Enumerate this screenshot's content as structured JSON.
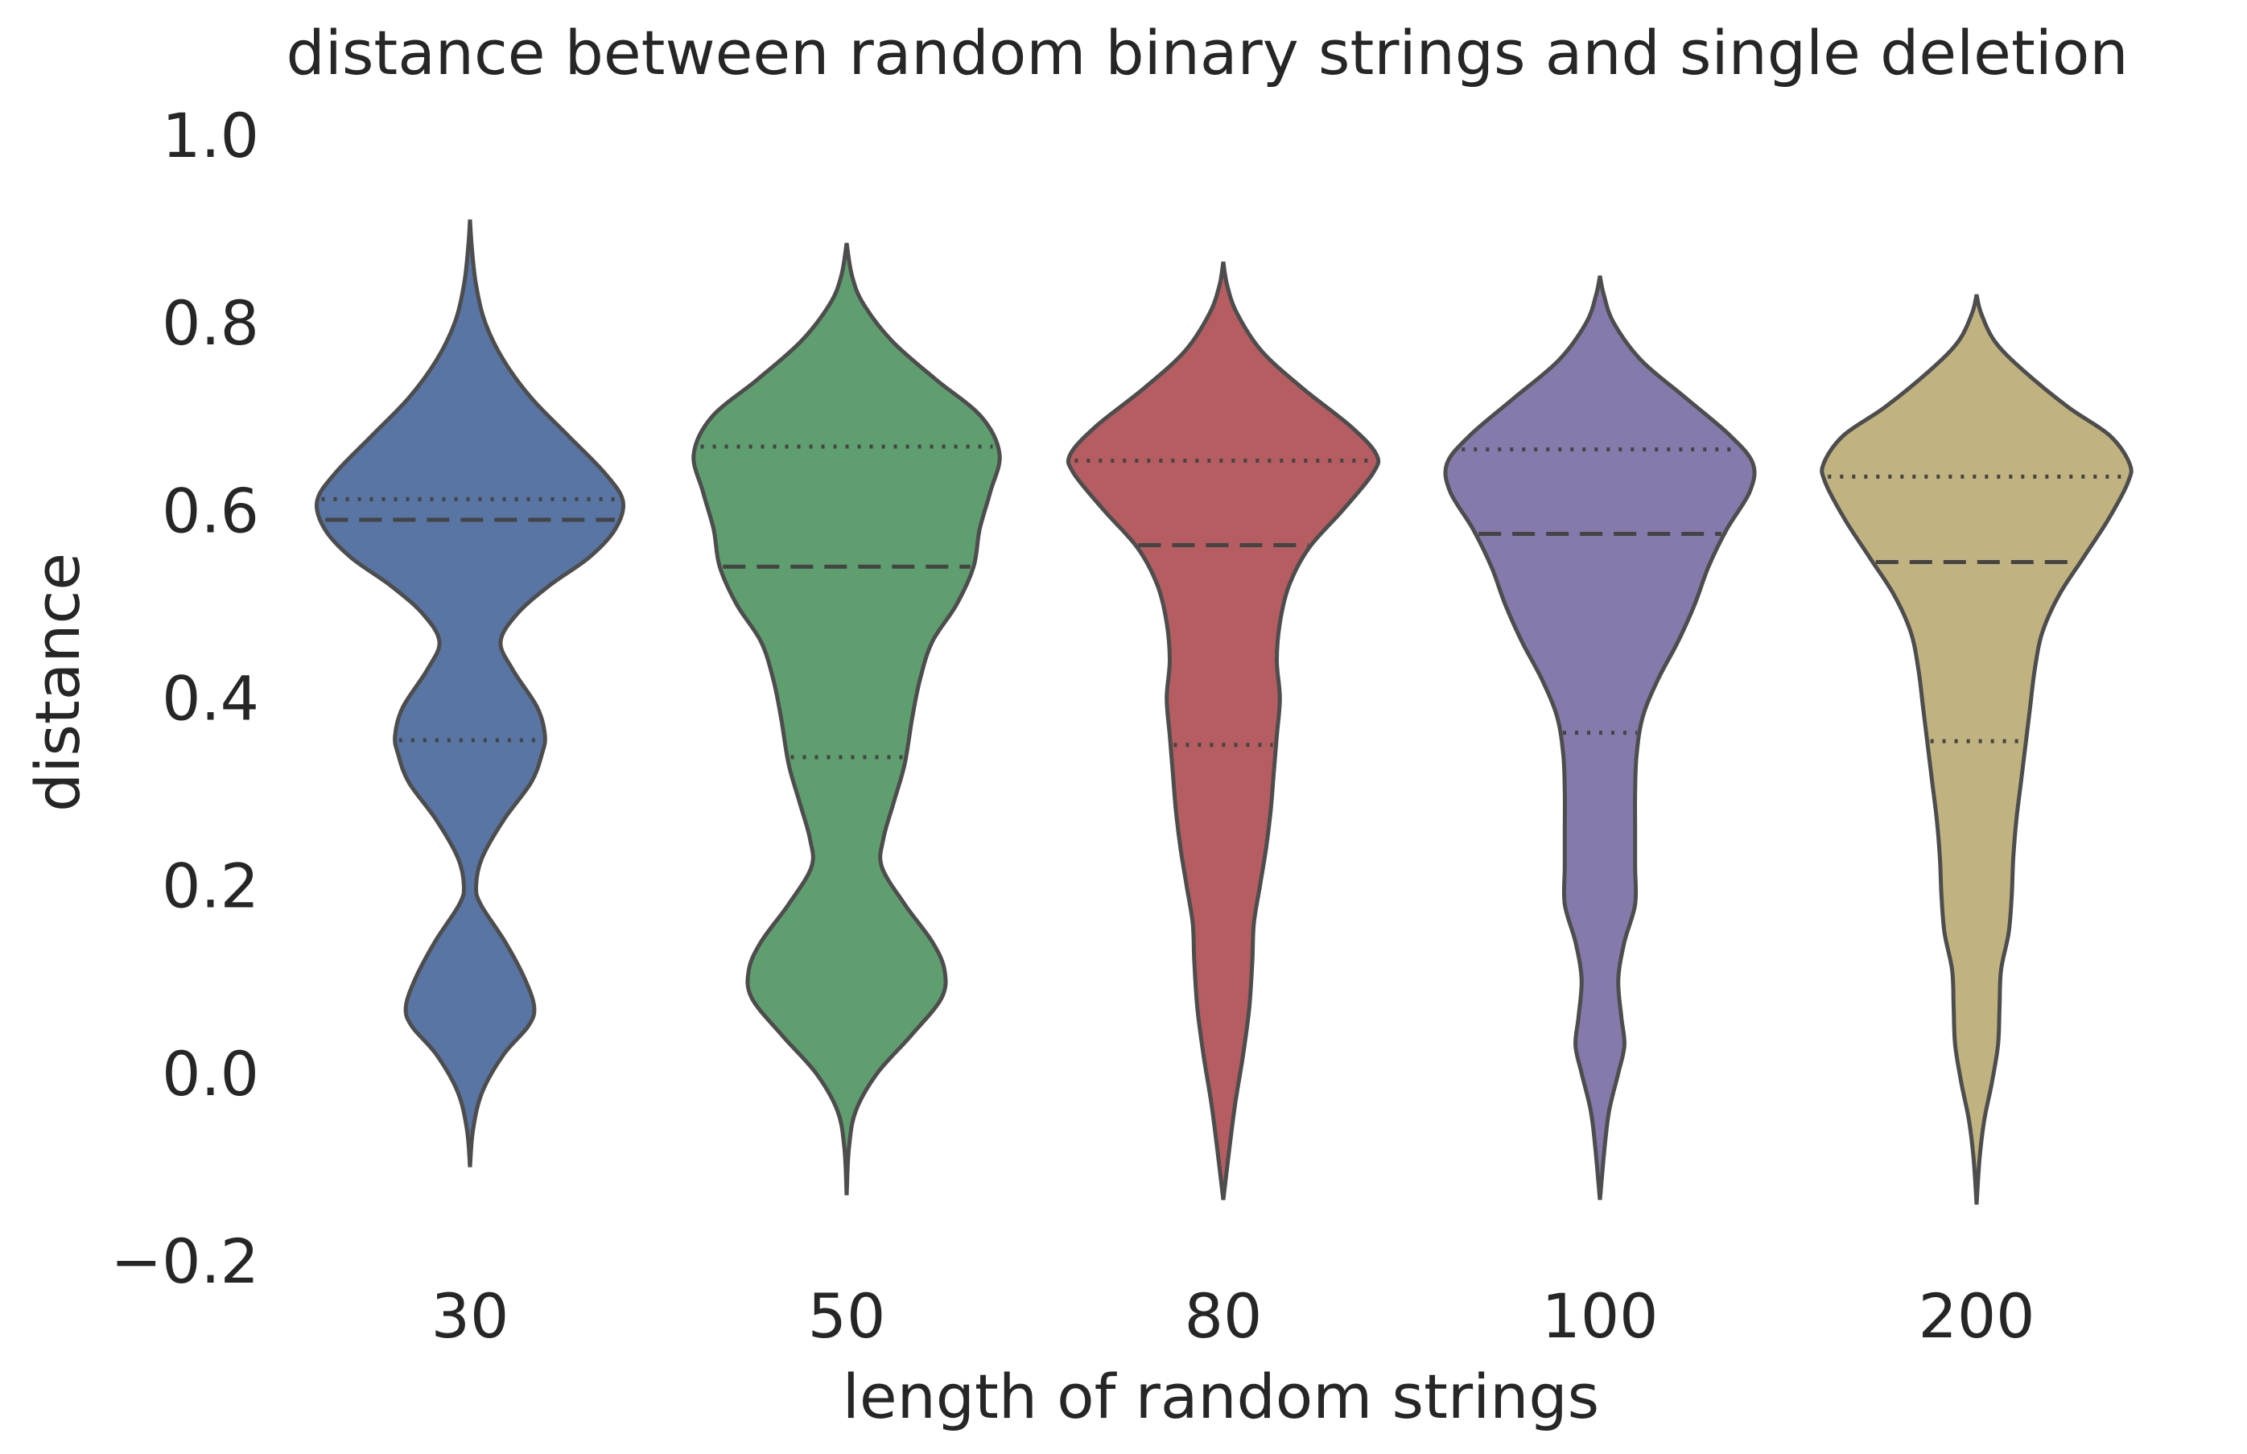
{
  "chart_data": {
    "type": "violin",
    "title": "distance between random binary strings and single deletion",
    "xlabel": "length of random strings",
    "ylabel": "distance",
    "ylim": [
      -0.2,
      1.0
    ],
    "yticks": [
      "−0.2",
      "0.0",
      "0.2",
      "0.4",
      "0.6",
      "0.8",
      "1.0"
    ],
    "grid": false,
    "categories": [
      "30",
      "50",
      "80",
      "100",
      "200"
    ],
    "violins": [
      {
        "category": "30",
        "color": "#5875a4",
        "min": -0.1,
        "max": 0.91,
        "q1": 0.355,
        "median": 0.59,
        "q3": 0.612,
        "density": [
          [
            -0.1,
            0.0
          ],
          [
            -0.06,
            0.02
          ],
          [
            -0.02,
            0.08
          ],
          [
            0.02,
            0.22
          ],
          [
            0.05,
            0.38
          ],
          [
            0.07,
            0.42
          ],
          [
            0.1,
            0.36
          ],
          [
            0.14,
            0.23
          ],
          [
            0.18,
            0.07
          ],
          [
            0.2,
            0.04
          ],
          [
            0.23,
            0.08
          ],
          [
            0.27,
            0.22
          ],
          [
            0.31,
            0.4
          ],
          [
            0.34,
            0.47
          ],
          [
            0.36,
            0.49
          ],
          [
            0.39,
            0.44
          ],
          [
            0.43,
            0.28
          ],
          [
            0.46,
            0.2
          ],
          [
            0.49,
            0.31
          ],
          [
            0.52,
            0.52
          ],
          [
            0.55,
            0.78
          ],
          [
            0.58,
            0.95
          ],
          [
            0.61,
            1.0
          ],
          [
            0.64,
            0.88
          ],
          [
            0.68,
            0.64
          ],
          [
            0.72,
            0.4
          ],
          [
            0.76,
            0.22
          ],
          [
            0.8,
            0.1
          ],
          [
            0.84,
            0.04
          ],
          [
            0.88,
            0.012
          ],
          [
            0.91,
            0.0
          ]
        ]
      },
      {
        "category": "50",
        "color": "#5f9e6e",
        "min": -0.13,
        "max": 0.885,
        "q1": 0.337,
        "median": 0.54,
        "q3": 0.668,
        "density": [
          [
            -0.13,
            0.0
          ],
          [
            -0.08,
            0.015
          ],
          [
            -0.04,
            0.06
          ],
          [
            0.0,
            0.2
          ],
          [
            0.04,
            0.42
          ],
          [
            0.08,
            0.62
          ],
          [
            0.11,
            0.64
          ],
          [
            0.14,
            0.56
          ],
          [
            0.18,
            0.38
          ],
          [
            0.22,
            0.23
          ],
          [
            0.25,
            0.24
          ],
          [
            0.29,
            0.31
          ],
          [
            0.33,
            0.38
          ],
          [
            0.38,
            0.43
          ],
          [
            0.42,
            0.48
          ],
          [
            0.46,
            0.56
          ],
          [
            0.5,
            0.72
          ],
          [
            0.54,
            0.83
          ],
          [
            0.58,
            0.87
          ],
          [
            0.62,
            0.94
          ],
          [
            0.66,
            1.0
          ],
          [
            0.7,
            0.88
          ],
          [
            0.74,
            0.58
          ],
          [
            0.78,
            0.3
          ],
          [
            0.82,
            0.11
          ],
          [
            0.85,
            0.035
          ],
          [
            0.885,
            0.0
          ]
        ]
      },
      {
        "category": "80",
        "color": "#b55d60",
        "min": -0.135,
        "max": 0.865,
        "q1": 0.35,
        "median": 0.563,
        "q3": 0.653,
        "density": [
          [
            -0.135,
            0.0
          ],
          [
            -0.08,
            0.04
          ],
          [
            -0.03,
            0.08
          ],
          [
            0.02,
            0.13
          ],
          [
            0.07,
            0.17
          ],
          [
            0.12,
            0.19
          ],
          [
            0.16,
            0.2
          ],
          [
            0.2,
            0.24
          ],
          [
            0.24,
            0.28
          ],
          [
            0.28,
            0.31
          ],
          [
            0.32,
            0.33
          ],
          [
            0.36,
            0.35
          ],
          [
            0.4,
            0.37
          ],
          [
            0.44,
            0.35
          ],
          [
            0.48,
            0.37
          ],
          [
            0.52,
            0.43
          ],
          [
            0.56,
            0.56
          ],
          [
            0.6,
            0.78
          ],
          [
            0.64,
            0.98
          ],
          [
            0.66,
            1.0
          ],
          [
            0.69,
            0.83
          ],
          [
            0.73,
            0.52
          ],
          [
            0.77,
            0.25
          ],
          [
            0.81,
            0.09
          ],
          [
            0.84,
            0.025
          ],
          [
            0.865,
            0.0
          ]
        ]
      },
      {
        "category": "100",
        "color": "#857aab",
        "min": -0.135,
        "max": 0.85,
        "q1": 0.363,
        "median": 0.575,
        "q3": 0.665,
        "density": [
          [
            -0.135,
            0.0
          ],
          [
            -0.08,
            0.03
          ],
          [
            -0.04,
            0.06
          ],
          [
            0.0,
            0.12
          ],
          [
            0.03,
            0.16
          ],
          [
            0.06,
            0.14
          ],
          [
            0.1,
            0.12
          ],
          [
            0.14,
            0.16
          ],
          [
            0.18,
            0.23
          ],
          [
            0.22,
            0.23
          ],
          [
            0.26,
            0.23
          ],
          [
            0.3,
            0.23
          ],
          [
            0.34,
            0.24
          ],
          [
            0.38,
            0.28
          ],
          [
            0.42,
            0.38
          ],
          [
            0.46,
            0.51
          ],
          [
            0.5,
            0.62
          ],
          [
            0.54,
            0.71
          ],
          [
            0.58,
            0.83
          ],
          [
            0.62,
            0.98
          ],
          [
            0.65,
            1.0
          ],
          [
            0.68,
            0.85
          ],
          [
            0.72,
            0.56
          ],
          [
            0.76,
            0.27
          ],
          [
            0.8,
            0.09
          ],
          [
            0.83,
            0.025
          ],
          [
            0.85,
            0.0
          ]
        ]
      },
      {
        "category": "200",
        "color": "#c1b37f",
        "min": -0.14,
        "max": 0.83,
        "q1": 0.354,
        "median": 0.545,
        "q3": 0.636,
        "density": [
          [
            -0.14,
            0.0
          ],
          [
            -0.09,
            0.02
          ],
          [
            -0.05,
            0.05
          ],
          [
            -0.01,
            0.1
          ],
          [
            0.03,
            0.14
          ],
          [
            0.07,
            0.15
          ],
          [
            0.11,
            0.16
          ],
          [
            0.15,
            0.21
          ],
          [
            0.19,
            0.23
          ],
          [
            0.23,
            0.24
          ],
          [
            0.27,
            0.26
          ],
          [
            0.31,
            0.29
          ],
          [
            0.35,
            0.32
          ],
          [
            0.39,
            0.35
          ],
          [
            0.43,
            0.38
          ],
          [
            0.47,
            0.43
          ],
          [
            0.51,
            0.54
          ],
          [
            0.55,
            0.7
          ],
          [
            0.59,
            0.86
          ],
          [
            0.63,
            0.99
          ],
          [
            0.65,
            1.0
          ],
          [
            0.68,
            0.87
          ],
          [
            0.71,
            0.6
          ],
          [
            0.75,
            0.3
          ],
          [
            0.78,
            0.12
          ],
          [
            0.81,
            0.03
          ],
          [
            0.83,
            0.0
          ]
        ]
      }
    ]
  }
}
